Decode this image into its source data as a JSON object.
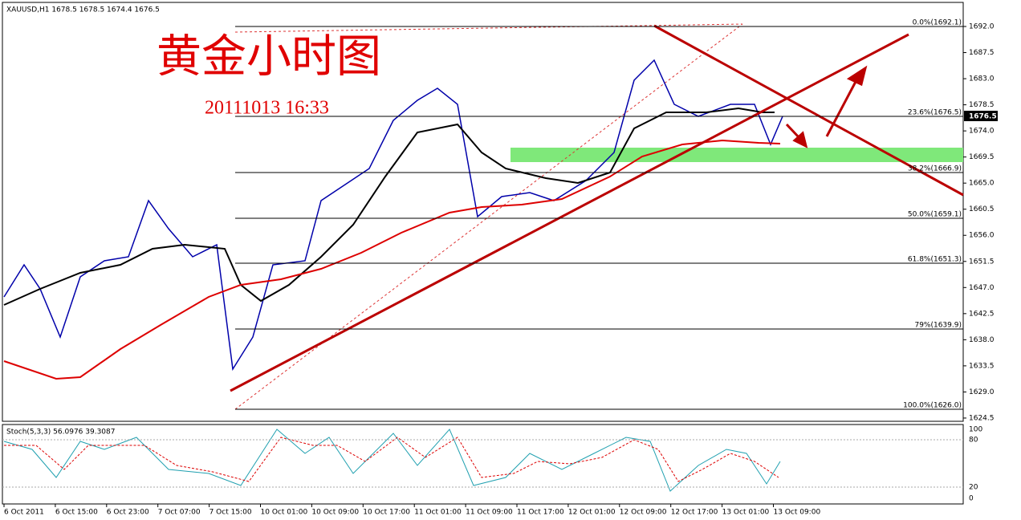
{
  "header": {
    "symbol_info": "XAUUSD,H1  1678.5 1678.5 1674.4 1676.5",
    "title": "黄金小时图",
    "timestamp": "20111013 16:33"
  },
  "price_axis": {
    "labels": [
      "1692.0",
      "1687.5",
      "1683.0",
      "1678.5",
      "1674.0",
      "1669.5",
      "1665.0",
      "1660.5",
      "1656.0",
      "1651.5",
      "1647.0",
      "1642.5",
      "1638.0",
      "1633.5",
      "1629.0",
      "1624.5"
    ],
    "current": "1676.5"
  },
  "fib_levels": [
    "0.0%(1692.1)",
    "23.6%(1676.5)",
    "38.2%(1666.9)",
    "50.0%(1659.1)",
    "61.8%(1651.3)",
    "79%(1639.9)",
    "100.0%(1626.0)"
  ],
  "stochastic": {
    "label": "Stoch(5,3,3) 56.0976 39.3087",
    "levels": [
      "100",
      "80",
      "20",
      "0"
    ]
  },
  "time_axis": [
    "6 Oct 2011",
    "6 Oct 15:00",
    "6 Oct 23:00",
    "7 Oct 07:00",
    "7 Oct 15:00",
    "10 Oct 01:00",
    "10 Oct 09:00",
    "10 Oct 17:00",
    "11 Oct 01:00",
    "11 Oct 09:00",
    "11 Oct 17:00",
    "12 Oct 01:00",
    "12 Oct 09:00",
    "12 Oct 17:00",
    "13 Oct 01:00",
    "13 Oct 09:00"
  ]
}
